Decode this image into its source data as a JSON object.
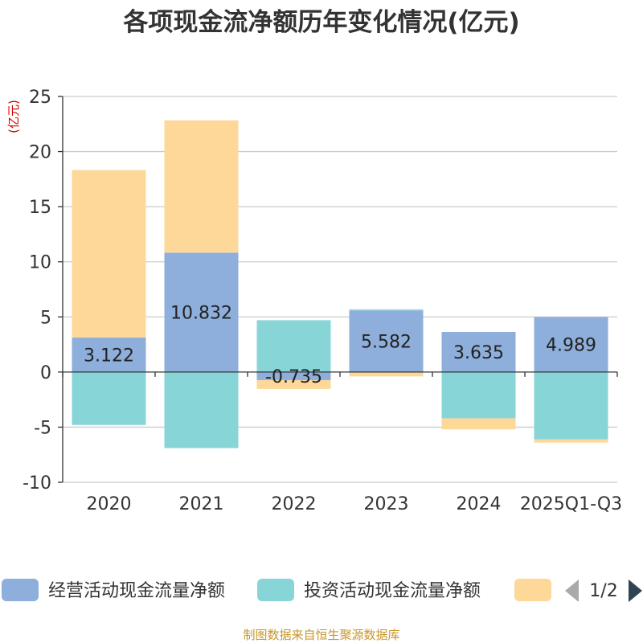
{
  "chart_data": {
    "type": "bar",
    "stacked": true,
    "title": "各项现金流净额历年变化情况(亿元)",
    "ylabel": "(亿元)",
    "xlabel": "",
    "ylim": [
      -10,
      25
    ],
    "yticks": [
      25,
      20,
      15,
      10,
      5,
      0,
      -5,
      -10
    ],
    "categories": [
      "2020",
      "2021",
      "2022",
      "2023",
      "2024",
      "2025Q1-Q3"
    ],
    "series": [
      {
        "name": "经营活动现金流量净额",
        "color": "#8eaedb",
        "values": [
          3.122,
          10.832,
          -0.735,
          5.582,
          3.635,
          4.989
        ],
        "labels": [
          "3.122",
          "10.832",
          "-0.735",
          "5.582",
          "3.635",
          "4.989"
        ]
      },
      {
        "name": "投资活动现金流量净额",
        "color": "#88d5d8",
        "values": [
          -4.8,
          -6.9,
          4.7,
          0.1,
          -4.2,
          -6.1
        ]
      },
      {
        "name": "",
        "color": "#fdd899",
        "values": [
          15.2,
          12.0,
          -0.8,
          -0.4,
          -1.0,
          -0.3
        ]
      }
    ],
    "legend_position": "bottom",
    "pager": "1/2",
    "source": "制图数据来自恒生聚源数据库"
  }
}
